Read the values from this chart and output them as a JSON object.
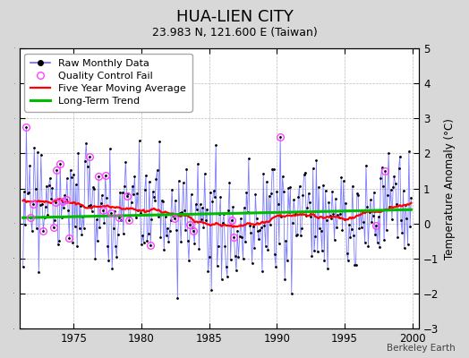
{
  "title": "HUA-LIEN CITY",
  "subtitle": "23.983 N, 121.600 E (Taiwan)",
  "ylabel": "Temperature Anomaly (°C)",
  "attribution": "Berkeley Earth",
  "start_year": 1971.0,
  "end_year": 2000.5,
  "ylim": [
    -3,
    5
  ],
  "yticks": [
    -3,
    -2,
    -1,
    0,
    1,
    2,
    3,
    4,
    5
  ],
  "xticks": [
    1975,
    1980,
    1985,
    1990,
    1995,
    2000
  ],
  "bg_color": "#d8d8d8",
  "plot_bg_color": "#ffffff",
  "raw_line_color": "#6666ff",
  "raw_dot_color": "#000000",
  "qc_color": "#ff44ff",
  "moving_avg_color": "#ff0000",
  "trend_color": "#00bb00",
  "title_fontsize": 13,
  "subtitle_fontsize": 9,
  "legend_fontsize": 8,
  "tick_labelsize": 8.5
}
